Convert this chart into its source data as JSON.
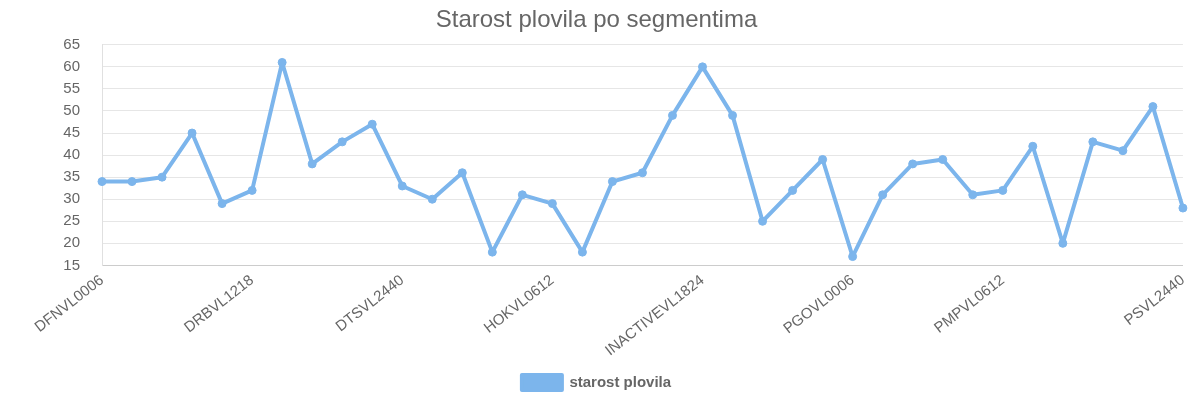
{
  "chart_data": {
    "type": "line",
    "title": "Starost plovila po segmentima",
    "categories": [
      "DFNVL0006",
      null,
      null,
      null,
      null,
      "DRBVL1218",
      null,
      null,
      null,
      null,
      "DTSVL2440",
      null,
      null,
      null,
      null,
      "HOKVL0612",
      null,
      null,
      null,
      null,
      "INACTIVEVL1824",
      null,
      null,
      null,
      null,
      "PGOVL0006",
      null,
      null,
      null,
      null,
      "PMPVL0612",
      null,
      null,
      null,
      null,
      null,
      "PSVL2440"
    ],
    "series": [
      {
        "name": "starost plovila",
        "color": "#7cb5ec",
        "values": [
          34,
          34,
          35,
          45,
          29,
          32,
          61,
          38,
          43,
          47,
          33,
          30,
          36,
          18,
          31,
          29,
          18,
          34,
          36,
          49,
          60,
          49,
          25,
          32,
          39,
          17,
          31,
          38,
          39,
          31,
          32,
          42,
          20,
          43,
          41,
          51,
          28
        ]
      }
    ],
    "ylim": [
      15,
      65
    ],
    "yticks": [
      15,
      20,
      25,
      30,
      35,
      40,
      45,
      50,
      55,
      60,
      65
    ],
    "grid": "y",
    "legend": "bottom",
    "marker": "circle",
    "line_style": "solid"
  }
}
